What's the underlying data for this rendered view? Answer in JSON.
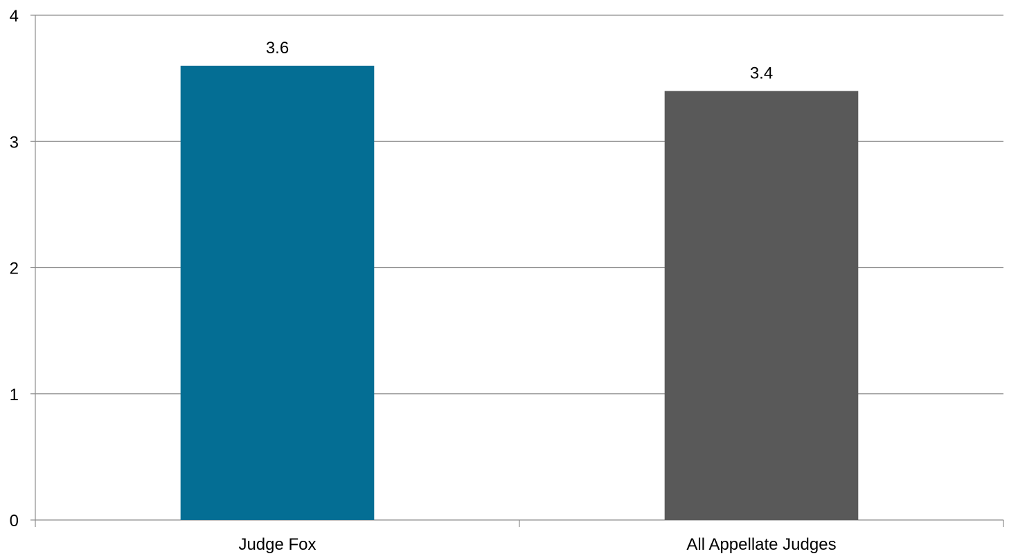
{
  "chart_data": {
    "type": "bar",
    "title": "",
    "xlabel": "",
    "ylabel": "",
    "categories": [
      "Judge Fox",
      "All Appellate Judges"
    ],
    "values": [
      3.6,
      3.4
    ],
    "data_labels": [
      "3.6",
      "3.4"
    ],
    "bar_colors": [
      "#046E94",
      "#595959"
    ],
    "ylim": [
      0,
      4
    ],
    "yticks": [
      0,
      1,
      2,
      3,
      4
    ],
    "ytick_labels": [
      "0",
      "1",
      "2",
      "3",
      "4"
    ],
    "grid": true,
    "legend": "none"
  }
}
